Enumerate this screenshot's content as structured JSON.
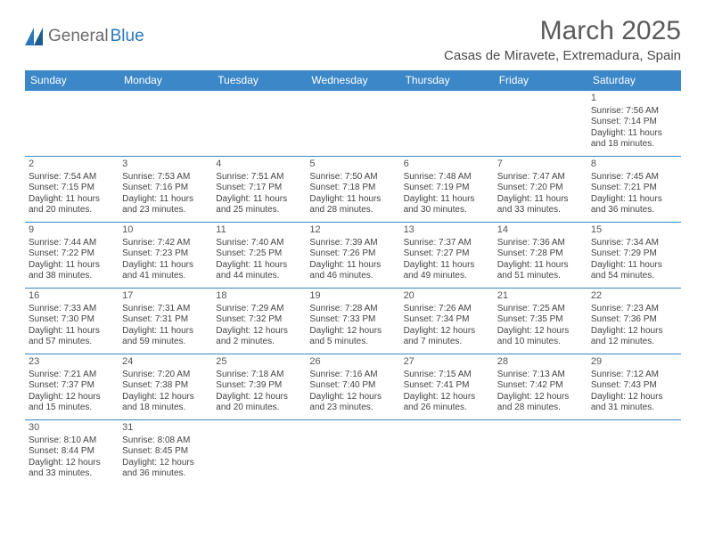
{
  "logo": {
    "text1": "General",
    "text2": "Blue"
  },
  "title": "March 2025",
  "location": "Casas de Miravete, Extremadura, Spain",
  "colors": {
    "header_bg": "#3b87c8",
    "header_fg": "#ffffff",
    "border": "#3b87c8",
    "title_color": "#5a5a5a",
    "text_color": "#444444",
    "logo_gray": "#6b6b6b",
    "logo_blue": "#2b77bd"
  },
  "day_headers": [
    "Sunday",
    "Monday",
    "Tuesday",
    "Wednesday",
    "Thursday",
    "Friday",
    "Saturday"
  ],
  "weeks": [
    [
      null,
      null,
      null,
      null,
      null,
      null,
      {
        "n": "1",
        "sr": "Sunrise: 7:56 AM",
        "ss": "Sunset: 7:14 PM",
        "d1": "Daylight: 11 hours",
        "d2": "and 18 minutes."
      }
    ],
    [
      {
        "n": "2",
        "sr": "Sunrise: 7:54 AM",
        "ss": "Sunset: 7:15 PM",
        "d1": "Daylight: 11 hours",
        "d2": "and 20 minutes."
      },
      {
        "n": "3",
        "sr": "Sunrise: 7:53 AM",
        "ss": "Sunset: 7:16 PM",
        "d1": "Daylight: 11 hours",
        "d2": "and 23 minutes."
      },
      {
        "n": "4",
        "sr": "Sunrise: 7:51 AM",
        "ss": "Sunset: 7:17 PM",
        "d1": "Daylight: 11 hours",
        "d2": "and 25 minutes."
      },
      {
        "n": "5",
        "sr": "Sunrise: 7:50 AM",
        "ss": "Sunset: 7:18 PM",
        "d1": "Daylight: 11 hours",
        "d2": "and 28 minutes."
      },
      {
        "n": "6",
        "sr": "Sunrise: 7:48 AM",
        "ss": "Sunset: 7:19 PM",
        "d1": "Daylight: 11 hours",
        "d2": "and 30 minutes."
      },
      {
        "n": "7",
        "sr": "Sunrise: 7:47 AM",
        "ss": "Sunset: 7:20 PM",
        "d1": "Daylight: 11 hours",
        "d2": "and 33 minutes."
      },
      {
        "n": "8",
        "sr": "Sunrise: 7:45 AM",
        "ss": "Sunset: 7:21 PM",
        "d1": "Daylight: 11 hours",
        "d2": "and 36 minutes."
      }
    ],
    [
      {
        "n": "9",
        "sr": "Sunrise: 7:44 AM",
        "ss": "Sunset: 7:22 PM",
        "d1": "Daylight: 11 hours",
        "d2": "and 38 minutes."
      },
      {
        "n": "10",
        "sr": "Sunrise: 7:42 AM",
        "ss": "Sunset: 7:23 PM",
        "d1": "Daylight: 11 hours",
        "d2": "and 41 minutes."
      },
      {
        "n": "11",
        "sr": "Sunrise: 7:40 AM",
        "ss": "Sunset: 7:25 PM",
        "d1": "Daylight: 11 hours",
        "d2": "and 44 minutes."
      },
      {
        "n": "12",
        "sr": "Sunrise: 7:39 AM",
        "ss": "Sunset: 7:26 PM",
        "d1": "Daylight: 11 hours",
        "d2": "and 46 minutes."
      },
      {
        "n": "13",
        "sr": "Sunrise: 7:37 AM",
        "ss": "Sunset: 7:27 PM",
        "d1": "Daylight: 11 hours",
        "d2": "and 49 minutes."
      },
      {
        "n": "14",
        "sr": "Sunrise: 7:36 AM",
        "ss": "Sunset: 7:28 PM",
        "d1": "Daylight: 11 hours",
        "d2": "and 51 minutes."
      },
      {
        "n": "15",
        "sr": "Sunrise: 7:34 AM",
        "ss": "Sunset: 7:29 PM",
        "d1": "Daylight: 11 hours",
        "d2": "and 54 minutes."
      }
    ],
    [
      {
        "n": "16",
        "sr": "Sunrise: 7:33 AM",
        "ss": "Sunset: 7:30 PM",
        "d1": "Daylight: 11 hours",
        "d2": "and 57 minutes."
      },
      {
        "n": "17",
        "sr": "Sunrise: 7:31 AM",
        "ss": "Sunset: 7:31 PM",
        "d1": "Daylight: 11 hours",
        "d2": "and 59 minutes."
      },
      {
        "n": "18",
        "sr": "Sunrise: 7:29 AM",
        "ss": "Sunset: 7:32 PM",
        "d1": "Daylight: 12 hours",
        "d2": "and 2 minutes."
      },
      {
        "n": "19",
        "sr": "Sunrise: 7:28 AM",
        "ss": "Sunset: 7:33 PM",
        "d1": "Daylight: 12 hours",
        "d2": "and 5 minutes."
      },
      {
        "n": "20",
        "sr": "Sunrise: 7:26 AM",
        "ss": "Sunset: 7:34 PM",
        "d1": "Daylight: 12 hours",
        "d2": "and 7 minutes."
      },
      {
        "n": "21",
        "sr": "Sunrise: 7:25 AM",
        "ss": "Sunset: 7:35 PM",
        "d1": "Daylight: 12 hours",
        "d2": "and 10 minutes."
      },
      {
        "n": "22",
        "sr": "Sunrise: 7:23 AM",
        "ss": "Sunset: 7:36 PM",
        "d1": "Daylight: 12 hours",
        "d2": "and 12 minutes."
      }
    ],
    [
      {
        "n": "23",
        "sr": "Sunrise: 7:21 AM",
        "ss": "Sunset: 7:37 PM",
        "d1": "Daylight: 12 hours",
        "d2": "and 15 minutes."
      },
      {
        "n": "24",
        "sr": "Sunrise: 7:20 AM",
        "ss": "Sunset: 7:38 PM",
        "d1": "Daylight: 12 hours",
        "d2": "and 18 minutes."
      },
      {
        "n": "25",
        "sr": "Sunrise: 7:18 AM",
        "ss": "Sunset: 7:39 PM",
        "d1": "Daylight: 12 hours",
        "d2": "and 20 minutes."
      },
      {
        "n": "26",
        "sr": "Sunrise: 7:16 AM",
        "ss": "Sunset: 7:40 PM",
        "d1": "Daylight: 12 hours",
        "d2": "and 23 minutes."
      },
      {
        "n": "27",
        "sr": "Sunrise: 7:15 AM",
        "ss": "Sunset: 7:41 PM",
        "d1": "Daylight: 12 hours",
        "d2": "and 26 minutes."
      },
      {
        "n": "28",
        "sr": "Sunrise: 7:13 AM",
        "ss": "Sunset: 7:42 PM",
        "d1": "Daylight: 12 hours",
        "d2": "and 28 minutes."
      },
      {
        "n": "29",
        "sr": "Sunrise: 7:12 AM",
        "ss": "Sunset: 7:43 PM",
        "d1": "Daylight: 12 hours",
        "d2": "and 31 minutes."
      }
    ],
    [
      {
        "n": "30",
        "sr": "Sunrise: 8:10 AM",
        "ss": "Sunset: 8:44 PM",
        "d1": "Daylight: 12 hours",
        "d2": "and 33 minutes."
      },
      {
        "n": "31",
        "sr": "Sunrise: 8:08 AM",
        "ss": "Sunset: 8:45 PM",
        "d1": "Daylight: 12 hours",
        "d2": "and 36 minutes."
      },
      null,
      null,
      null,
      null,
      null
    ]
  ]
}
